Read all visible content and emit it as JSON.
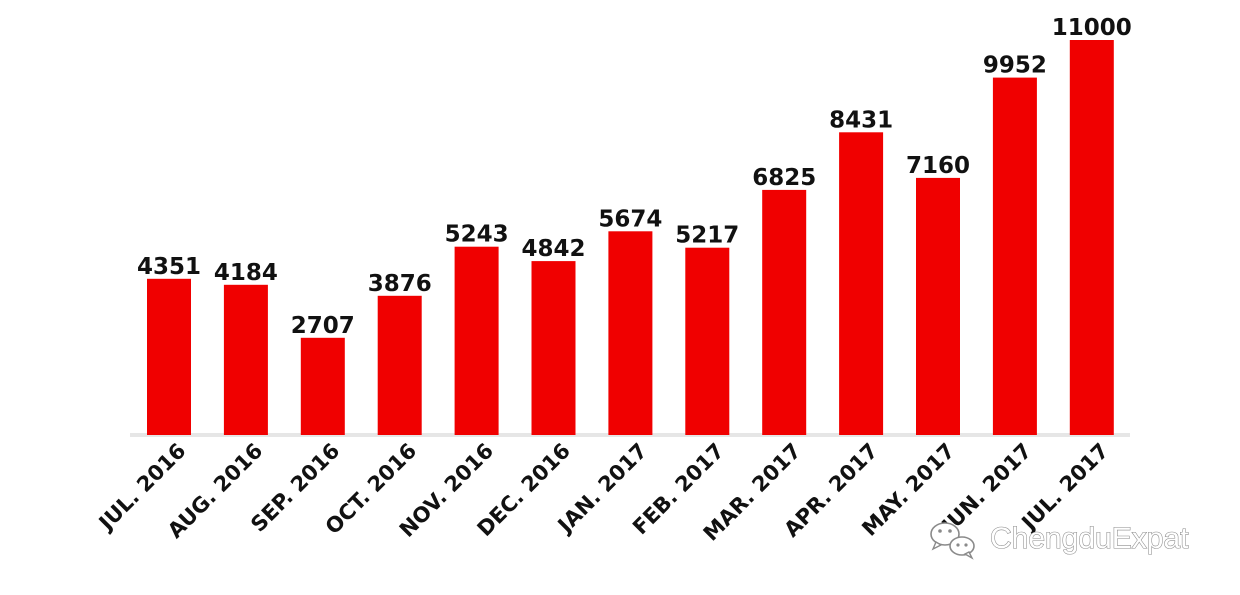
{
  "chart_data": {
    "type": "bar",
    "categories": [
      "JUL. 2016",
      "AUG. 2016",
      "SEP. 2016",
      "OCT. 2016",
      "NOV. 2016",
      "DEC. 2016",
      "JAN. 2017",
      "FEB. 2017",
      "MAR. 2017",
      "APR. 2017",
      "MAY. 2017",
      "JUN. 2017",
      "JUL. 2017"
    ],
    "values": [
      4351,
      4184,
      2707,
      3876,
      5243,
      4842,
      5674,
      5217,
      6825,
      8431,
      7160,
      9952,
      11000
    ],
    "title": "",
    "xlabel": "",
    "ylabel": "",
    "ylim": [
      0,
      11000
    ],
    "grid": false,
    "legend": "none",
    "bar_color": "#f00000",
    "baseline_color": "#e6e6e6"
  },
  "watermark": {
    "text": "ChengduExpat",
    "icon": "wechat-icon"
  }
}
